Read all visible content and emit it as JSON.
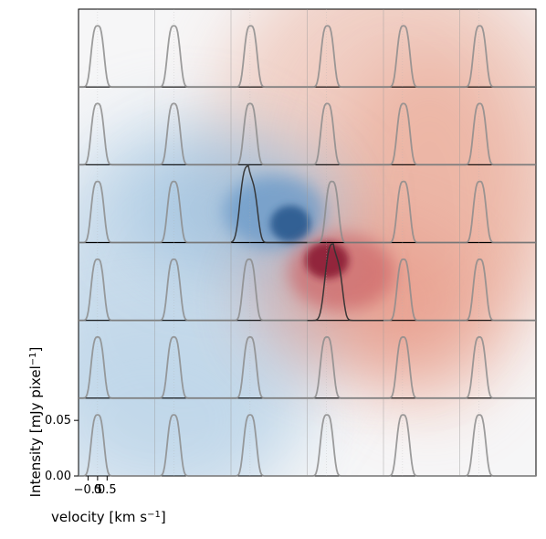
{
  "chart_data": {
    "type": "line",
    "title": "",
    "layout": {
      "rows": 6,
      "cols": 6
    },
    "xlabel": "velocity [km s",
    "xlabel_sup": "−1",
    "xlabel_close": "]",
    "ylabel": "Intensity [mJy pixel",
    "ylabel_sup": "−1",
    "ylabel_close": "]",
    "xlim": [
      -1.0,
      3.0
    ],
    "ylim": [
      0.0,
      0.07
    ],
    "xticks": [
      -0.5,
      0,
      0.5
    ],
    "xtick_labels": [
      "−0.5",
      "0",
      "0.5"
    ],
    "yticks": [
      0.0,
      0.05
    ],
    "ytick_labels": [
      "0.00",
      "0.05"
    ],
    "line_color": "#8c8c8c",
    "highlight_line_color": "#333333",
    "background_colormap": {
      "negative": "#1f4e8c",
      "zero": "#f7f7f7",
      "positive": "#8c1226"
    },
    "spectrum_model": {
      "peak": 0.055,
      "width_km_s": 0.32,
      "centers_by_row": [
        [
          0.0,
          0.0,
          0.03,
          0.06,
          0.05,
          0.05
        ],
        [
          0.0,
          0.0,
          0.0,
          0.05,
          0.05,
          0.05
        ],
        [
          0.0,
          0.0,
          -0.1,
          0.3,
          0.05,
          0.05
        ],
        [
          0.0,
          0.0,
          -0.05,
          0.35,
          0.05,
          0.05
        ],
        [
          0.0,
          0.0,
          0.0,
          0.03,
          0.03,
          0.03
        ],
        [
          0.0,
          0.0,
          0.0,
          0.03,
          0.03,
          0.03
        ]
      ],
      "highlight_cells": [
        [
          2,
          2
        ],
        [
          3,
          3
        ]
      ]
    }
  }
}
